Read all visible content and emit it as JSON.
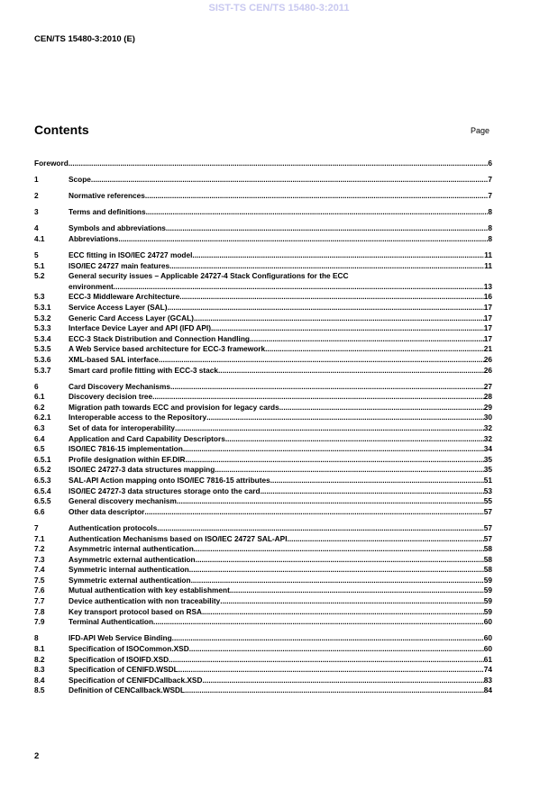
{
  "watermark": "SIST-TS CEN/TS 15480-3:2011",
  "header": "CEN/TS 15480-3:2010 (E)",
  "contents_title": "Contents",
  "page_label": "Page",
  "toc_groups": [
    [
      {
        "num": "",
        "title": "Foreword",
        "page": "6"
      }
    ],
    [
      {
        "num": "1",
        "title": "Scope ",
        "page": "7"
      }
    ],
    [
      {
        "num": "2",
        "title": "Normative references ",
        "page": "7"
      }
    ],
    [
      {
        "num": "3",
        "title": "Terms and definitions ",
        "page": "8"
      }
    ],
    [
      {
        "num": "4",
        "title": "Symbols and abbreviations",
        "page": "8"
      },
      {
        "num": "4.1",
        "title": "Abbreviations",
        "page": "8"
      }
    ],
    [
      {
        "num": "5",
        "title": "ECC fitting in ISO/IEC 24727 model ",
        "page": " 11"
      },
      {
        "num": "5.1",
        "title": "ISO/IEC 24727 main features ",
        "page": " 11"
      },
      {
        "num": "5.2",
        "title": "General security issues – Applicable 24727-4 Stack Configurations for the ECC",
        "title_line2": "environment ",
        "page": " 13"
      },
      {
        "num": "5.3",
        "title": "ECC-3 Middleware Architecture ",
        "page": " 16"
      },
      {
        "num": "5.3.1",
        "title": "Service Access Layer (SAL) ",
        "page": " 17"
      },
      {
        "num": "5.3.2",
        "title": "Generic Card Access Layer (GCAL) ",
        "page": " 17"
      },
      {
        "num": "5.3.3",
        "title": "Interface Device Layer and API (IFD API) ",
        "page": " 17"
      },
      {
        "num": "5.3.4",
        "title": "ECC-3 Stack Distribution and Connection Handling ",
        "page": " 17"
      },
      {
        "num": "5.3.5",
        "title": "A Web Service based architecture for ECC-3 framework",
        "page": " 21"
      },
      {
        "num": "5.3.6",
        "title": "XML-based SAL interface ",
        "page": " 26"
      },
      {
        "num": "5.3.7",
        "title": "Smart card profile fitting with ECC-3 stack",
        "page": " 26"
      }
    ],
    [
      {
        "num": "6",
        "title": "Card Discovery Mechanisms",
        "page": " 27"
      },
      {
        "num": "6.1",
        "title": "Discovery decision tree ",
        "page": " 28"
      },
      {
        "num": "6.2",
        "title": "Migration path towards ECC and provision for legacy cards ",
        "page": " 29"
      },
      {
        "num": "6.2.1",
        "title": "Interoperable access to the Repository ",
        "page": " 30"
      },
      {
        "num": "6.3",
        "title": "Set of data for interoperability",
        "page": " 32"
      },
      {
        "num": "6.4",
        "title": "Application and Card Capability Descriptors ",
        "page": " 32"
      },
      {
        "num": "6.5",
        "title": "ISO/IEC 7816-15 implementation",
        "page": " 34"
      },
      {
        "num": "6.5.1",
        "title": "Profile designation within EF.DIR ",
        "page": " 35"
      },
      {
        "num": "6.5.2",
        "title": "ISO/IEC 24727-3 data structures mapping ",
        "page": " 35"
      },
      {
        "num": "6.5.3",
        "title": "SAL-API Action mapping onto ISO/IEC 7816-15 attributes ",
        "page": " 51"
      },
      {
        "num": "6.5.4",
        "title": "ISO/IEC 24727-3 data structures storage onto the card ",
        "page": " 53"
      },
      {
        "num": "6.5.5",
        "title": "General discovery mechanism",
        "page": " 55"
      },
      {
        "num": "6.6",
        "title": "Other data descriptor ",
        "page": " 57"
      }
    ],
    [
      {
        "num": "7",
        "title": "Authentication protocols ",
        "page": " 57"
      },
      {
        "num": "7.1",
        "title": "Authentication Mechanisms based on ISO/IEC 24727 SAL-API ",
        "page": " 57"
      },
      {
        "num": "7.2",
        "title": "Asymmetric internal authentication",
        "page": " 58"
      },
      {
        "num": "7.3",
        "title": "Asymmetric external authentication",
        "page": " 58"
      },
      {
        "num": "7.4",
        "title": "Symmetric internal authentication",
        "page": " 58"
      },
      {
        "num": "7.5",
        "title": "Symmetric external authentication ",
        "page": " 59"
      },
      {
        "num": "7.6",
        "title": "Mutual authentication with key establishment ",
        "page": " 59"
      },
      {
        "num": "7.7",
        "title": "Device authentication with non traceability",
        "page": " 59"
      },
      {
        "num": "7.8",
        "title": "Key transport protocol based on RSA ",
        "page": " 59"
      },
      {
        "num": "7.9",
        "title": "Terminal Authentication",
        "page": " 60"
      }
    ],
    [
      {
        "num": "8",
        "title": "IFD-API Web Service Binding ",
        "page": " 60"
      },
      {
        "num": "8.1",
        "title": "Specification of ISOCommon.XSD",
        "page": " 60"
      },
      {
        "num": "8.2",
        "title": "Specification of ISOIFD.XSD",
        "page": " 61"
      },
      {
        "num": "8.3",
        "title": "Specification of CENIFD.WSDL ",
        "page": " 74"
      },
      {
        "num": "8.4",
        "title": "Specification of CENIFDCallback.XSD ",
        "page": " 83"
      },
      {
        "num": "8.5",
        "title": "Definition of CENCallback.WSDL",
        "page": " 84"
      }
    ]
  ],
  "page_number": "2"
}
